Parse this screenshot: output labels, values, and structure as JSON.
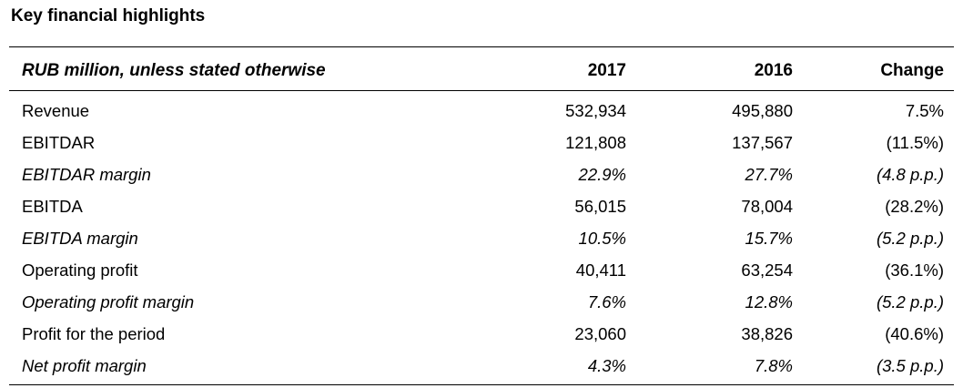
{
  "title": "Key financial highlights",
  "table": {
    "headers": {
      "label": "RUB million, unless stated otherwise",
      "col_2017": "2017",
      "col_2016": "2016",
      "col_change": "Change"
    },
    "rows": [
      {
        "label": "Revenue",
        "v2017": "532,934",
        "v2016": "495,880",
        "change": "7.5%",
        "italic": false
      },
      {
        "label": "EBITDAR",
        "v2017": "121,808",
        "v2016": "137,567",
        "change": "(11.5%)",
        "italic": false
      },
      {
        "label": "EBITDAR margin",
        "v2017": "22.9%",
        "v2016": "27.7%",
        "change": "(4.8 p.p.)",
        "italic": true
      },
      {
        "label": "EBITDA",
        "v2017": "56,015",
        "v2016": "78,004",
        "change": "(28.2%)",
        "italic": false
      },
      {
        "label": "EBITDA margin",
        "v2017": "10.5%",
        "v2016": "15.7%",
        "change": "(5.2 p.p.)",
        "italic": true
      },
      {
        "label": "Operating profit",
        "v2017": "40,411",
        "v2016": "63,254",
        "change": "(36.1%)",
        "italic": false
      },
      {
        "label": "Operating profit margin",
        "v2017": "7.6%",
        "v2016": "12.8%",
        "change": "(5.2 p.p.)",
        "italic": true
      },
      {
        "label": "Profit for the period",
        "v2017": "23,060",
        "v2016": "38,826",
        "change": "(40.6%)",
        "italic": false
      },
      {
        "label": "Net profit margin",
        "v2017": "4.3%",
        "v2016": "7.8%",
        "change": "(3.5 p.p.)",
        "italic": true
      }
    ]
  }
}
